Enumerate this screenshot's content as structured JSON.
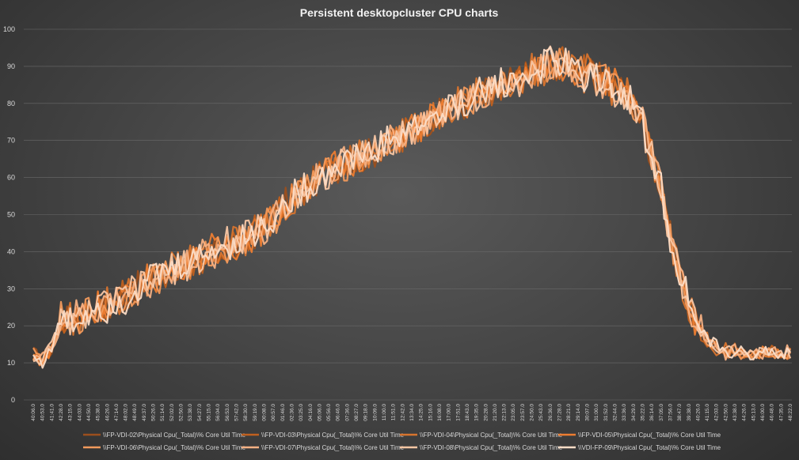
{
  "chart_data": {
    "type": "line",
    "title": "Persistent desktopcluster CPU charts",
    "ylim": [
      0,
      100
    ],
    "yticks": [
      0,
      10,
      20,
      30,
      40,
      50,
      60,
      70,
      80,
      90,
      100
    ],
    "grid": true,
    "legend_position": "bottom",
    "x": [
      "40:06.0",
      "40:53.0",
      "41:41.0",
      "42:28.0",
      "43:15.0",
      "44:03.0",
      "44:50.0",
      "45:38.0",
      "46:26.0",
      "47:14.0",
      "48:02.0",
      "48:49.0",
      "49:37.0",
      "50:26.0",
      "51:14.0",
      "52:02.0",
      "52:50.0",
      "53:38.0",
      "54:27.0",
      "55:15.0",
      "56:04.0",
      "56:53.0",
      "57:42.0",
      "58:30.0",
      "59:19.0",
      "00:08.0",
      "00:57.0",
      "01:46.0",
      "02:36.0",
      "03:25.0",
      "04:16.0",
      "05:06.0",
      "05:56.0",
      "06:46.0",
      "07:36.0",
      "08:27.0",
      "09:18.0",
      "10:09.0",
      "11:00.0",
      "11:51.0",
      "12:42.0",
      "13:34.0",
      "14:25.0",
      "15:16.0",
      "16:08.0",
      "17:00.0",
      "17:51.0",
      "18:43.0",
      "19:35.0",
      "20:28.0",
      "21:20.0",
      "22:13.0",
      "23:05.0",
      "23:57.0",
      "24:50.0",
      "25:43.0",
      "26:36.0",
      "27:28.0",
      "28:21.0",
      "29:14.0",
      "30:07.0",
      "31:00.0",
      "31:52.0",
      "32:44.0",
      "33:36.0",
      "34:29.0",
      "35:22.0",
      "36:14.0",
      "37:05.0",
      "37:56.0",
      "38:47.0",
      "39:38.0",
      "40:26.0",
      "41:15.0",
      "42:03.0",
      "42:50.0",
      "43:38.0",
      "44:26.0",
      "45:13.0",
      "46:00.0",
      "46:48.0",
      "47:35.0",
      "48:22.0"
    ],
    "series": [
      {
        "name": "\\\\FP-VDI-02\\Physical Cpu(_Total)\\% Core Util Time",
        "color": "#9c4f1d",
        "values": [
          13,
          11,
          13,
          22,
          21,
          23,
          25,
          26,
          24,
          27,
          28,
          30,
          31,
          33,
          35,
          34,
          36,
          38,
          37,
          40,
          39,
          42,
          41,
          44,
          45,
          47,
          49,
          52,
          55,
          57,
          58,
          60,
          62,
          63,
          65,
          64,
          66,
          67,
          69,
          70,
          72,
          73,
          74,
          76,
          77,
          78,
          79,
          80,
          82,
          83,
          84,
          85,
          86,
          87,
          88,
          89,
          90,
          91,
          90,
          89,
          88,
          87,
          86,
          85,
          83,
          80,
          74,
          66,
          56,
          44,
          34,
          26,
          20,
          16,
          14,
          13,
          13,
          12,
          12,
          13,
          13,
          12,
          13
        ]
      },
      {
        "name": "\\\\FP-VDI-03\\Physical Cpu(_Total)\\% Core Util Time",
        "color": "#c0601f",
        "values": [
          12,
          11,
          14,
          21,
          20,
          22,
          24,
          25,
          26,
          26,
          29,
          29,
          32,
          32,
          34,
          35,
          35,
          37,
          38,
          39,
          40,
          41,
          43,
          43,
          46,
          46,
          50,
          51,
          54,
          56,
          59,
          59,
          63,
          62,
          64,
          66,
          65,
          68,
          68,
          71,
          71,
          74,
          73,
          77,
          76,
          79,
          78,
          81,
          81,
          84,
          83,
          86,
          85,
          88,
          87,
          90,
          89,
          92,
          89,
          88,
          89,
          86,
          87,
          84,
          84,
          79,
          75,
          65,
          57,
          43,
          35,
          25,
          21,
          15,
          15,
          12,
          14,
          12,
          13,
          12,
          14,
          12,
          14
        ]
      },
      {
        "name": "\\\\FP-VDI-04\\Physical Cpu(_Total)\\% Core Util Time",
        "color": "#d8742e",
        "values": [
          11,
          12,
          15,
          20,
          22,
          21,
          25,
          24,
          27,
          26,
          28,
          31,
          30,
          34,
          33,
          36,
          35,
          38,
          39,
          38,
          41,
          40,
          44,
          42,
          46,
          48,
          48,
          53,
          53,
          58,
          57,
          61,
          61,
          64,
          63,
          66,
          66,
          68,
          70,
          69,
          73,
          72,
          75,
          75,
          78,
          77,
          80,
          80,
          83,
          82,
          85,
          84,
          87,
          86,
          89,
          88,
          91,
          90,
          91,
          87,
          89,
          85,
          86,
          83,
          83,
          81,
          73,
          67,
          55,
          45,
          33,
          27,
          19,
          17,
          13,
          14,
          12,
          13,
          12,
          13,
          12,
          13,
          12
        ]
      },
      {
        "name": "\\\\FP-VDI-05\\Physical Cpu(_Total)\\% Core Util Time",
        "color": "#ed7d31",
        "values": [
          12,
          10,
          14,
          21,
          21,
          23,
          23,
          26,
          25,
          28,
          27,
          30,
          32,
          33,
          34,
          34,
          37,
          37,
          38,
          41,
          40,
          43,
          42,
          45,
          44,
          47,
          49,
          51,
          54,
          57,
          58,
          60,
          62,
          64,
          64,
          65,
          67,
          66,
          70,
          69,
          72,
          74,
          73,
          76,
          76,
          79,
          79,
          80,
          83,
          82,
          85,
          86,
          85,
          88,
          88,
          89,
          92,
          90,
          90,
          88,
          87,
          88,
          85,
          86,
          82,
          81,
          74,
          66,
          57,
          44,
          35,
          26,
          20,
          16,
          15,
          12,
          13,
          13,
          12,
          13,
          13,
          12,
          13
        ]
      },
      {
        "name": "\\\\FP-VDI-06\\Physical Cpu(_Total)\\% Core Util Time",
        "color": "#f29a5c",
        "values": [
          13,
          11,
          13,
          22,
          20,
          22,
          24,
          25,
          25,
          27,
          28,
          30,
          31,
          33,
          33,
          36,
          36,
          37,
          38,
          39,
          41,
          41,
          43,
          44,
          45,
          48,
          48,
          52,
          55,
          56,
          59,
          60,
          61,
          64,
          63,
          65,
          66,
          68,
          68,
          71,
          71,
          73,
          75,
          75,
          77,
          78,
          79,
          81,
          81,
          84,
          84,
          85,
          87,
          87,
          89,
          89,
          90,
          91,
          90,
          89,
          88,
          86,
          87,
          84,
          83,
          80,
          74,
          66,
          56,
          44,
          34,
          26,
          20,
          16,
          14,
          13,
          13,
          12,
          12,
          13,
          13,
          12,
          13
        ]
      },
      {
        "name": "\\\\FP-VDI-07\\Physical Cpu(_Total)\\% Core Util Time",
        "color": "#f5b083",
        "values": [
          12,
          12,
          14,
          20,
          22,
          23,
          24,
          24,
          27,
          27,
          29,
          29,
          31,
          32,
          35,
          34,
          35,
          38,
          39,
          39,
          40,
          42,
          42,
          44,
          46,
          46,
          50,
          52,
          54,
          57,
          57,
          61,
          62,
          63,
          65,
          65,
          66,
          67,
          69,
          70,
          72,
          72,
          74,
          76,
          76,
          78,
          80,
          80,
          82,
          83,
          84,
          86,
          86,
          87,
          88,
          90,
          90,
          92,
          91,
          88,
          88,
          87,
          85,
          85,
          84,
          79,
          75,
          65,
          57,
          43,
          35,
          25,
          21,
          15,
          15,
          12,
          14,
          12,
          13,
          12,
          14,
          12,
          14
        ]
      },
      {
        "name": "\\\\FP-VDI-08\\Physical Cpu(_Total)\\% Core Util Time",
        "color": "#f8c6a3",
        "values": [
          11,
          11,
          15,
          21,
          21,
          21,
          25,
          25,
          26,
          26,
          28,
          31,
          30,
          33,
          34,
          35,
          36,
          37,
          37,
          40,
          39,
          43,
          41,
          45,
          45,
          47,
          48,
          53,
          53,
          58,
          58,
          60,
          61,
          63,
          64,
          66,
          66,
          68,
          70,
          69,
          72,
          73,
          75,
          75,
          78,
          77,
          80,
          81,
          82,
          82,
          85,
          85,
          87,
          86,
          89,
          89,
          91,
          90,
          91,
          87,
          89,
          85,
          86,
          83,
          83,
          81,
          73,
          67,
          55,
          45,
          33,
          27,
          19,
          17,
          13,
          14,
          12,
          13,
          12,
          13,
          12,
          13,
          12
        ]
      },
      {
        "name": "\\\\VDI-FP-09\\Physical Cpu(_Total)\\% Core Util Time",
        "color": "#fbdcc6",
        "values": [
          12,
          10,
          14,
          22,
          21,
          22,
          24,
          26,
          25,
          27,
          27,
          30,
          32,
          33,
          34,
          35,
          36,
          38,
          38,
          41,
          40,
          42,
          43,
          44,
          44,
          48,
          49,
          51,
          55,
          56,
          58,
          60,
          62,
          64,
          64,
          66,
          67,
          66,
          70,
          70,
          72,
          74,
          73,
          77,
          76,
          79,
          79,
          81,
          83,
          82,
          86,
          86,
          85,
          88,
          88,
          89,
          92,
          91,
          90,
          88,
          87,
          88,
          85,
          86,
          82,
          81,
          74,
          66,
          57,
          44,
          35,
          26,
          20,
          16,
          15,
          12,
          13,
          13,
          12,
          13,
          13,
          12,
          13
        ]
      }
    ]
  }
}
